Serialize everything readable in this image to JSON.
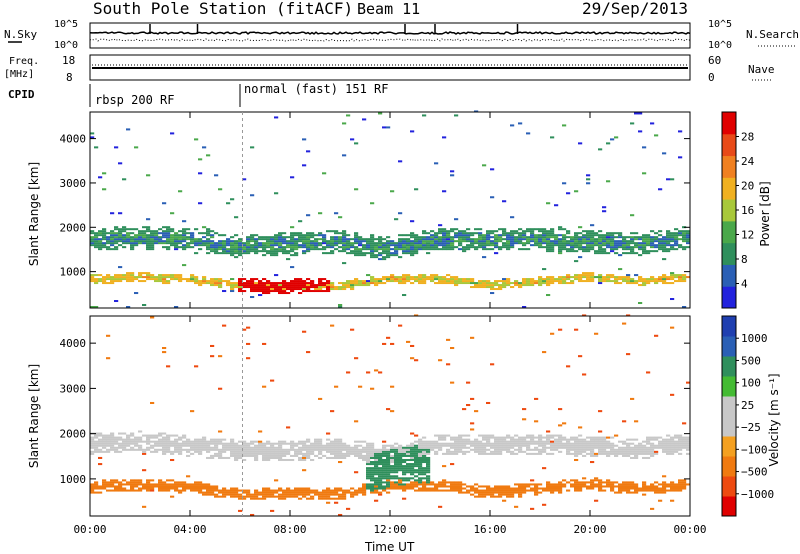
{
  "header": {
    "station": "South Pole Station (fitACF)",
    "beam": "Beam 11",
    "date": "29/Sep/2013"
  },
  "status_panels": {
    "nsky_label": "N.Sky",
    "nsearch_label": "N.Search",
    "nsky_ticks": [
      "10^5",
      "10^0"
    ],
    "nsearch_ticks": [
      "10^5",
      "10^0"
    ],
    "freq_label": "Freq.",
    "freq_unit": "[MHz]",
    "freq_ticks": [
      "18",
      "8"
    ],
    "nave_label": "Nave",
    "nave_ticks": [
      "60",
      "0"
    ],
    "cpid_label": "CPID",
    "cpid_segments": [
      {
        "label": "rbsp 200 RF",
        "start_hour": 0
      },
      {
        "label": "normal (fast) 151 RF",
        "start_hour": 6.1
      }
    ]
  },
  "colors": {
    "power": [
      "#2222dd",
      "#2a5fb5",
      "#2f8f5c",
      "#4aa84a",
      "#a8c83a",
      "#f0b020",
      "#f08020",
      "#e84a18",
      "#e00000"
    ],
    "velocity": [
      "#e00000",
      "#ee4a10",
      "#f07a10",
      "#f4a020",
      "#c8c8c8",
      "#c8c8c8",
      "#44bb33",
      "#2f8f5c",
      "#2a5fb5",
      "#1f3fb0"
    ]
  },
  "chart_data": [
    {
      "type": "heatmap",
      "panel": "power",
      "xlabel": "",
      "ylabel": "Slant Range [km]",
      "y_ticks": [
        "1000",
        "2000",
        "3000",
        "4000"
      ],
      "ylim": [
        180,
        4600
      ],
      "xlim": [
        0,
        24
      ],
      "colorbar": {
        "label": "Power [dB]",
        "ticks": [
          "4",
          "8",
          "12",
          "16",
          "20",
          "24",
          "28"
        ],
        "range": [
          0,
          30
        ]
      },
      "bands": [
        {
          "name": "near",
          "points": [
            [
              0,
              800
            ],
            [
              2,
              850
            ],
            [
              4,
              800
            ],
            [
              6,
              650
            ],
            [
              8,
              650
            ],
            [
              10,
              650
            ],
            [
              12,
              820
            ],
            [
              14,
              820
            ],
            [
              16,
              680
            ],
            [
              18,
              750
            ],
            [
              20,
              870
            ],
            [
              22,
              760
            ],
            [
              24,
              850
            ]
          ],
          "half_width": 110,
          "value": 17
        },
        {
          "name": "far",
          "points": [
            [
              0,
              1700
            ],
            [
              2,
              1750
            ],
            [
              4,
              1700
            ],
            [
              6,
              1550
            ],
            [
              8,
              1600
            ],
            [
              10,
              1650
            ],
            [
              12,
              1500
            ],
            [
              14,
              1700
            ],
            [
              16,
              1700
            ],
            [
              18,
              1700
            ],
            [
              20,
              1650
            ],
            [
              22,
              1600
            ],
            [
              24,
              1750
            ]
          ],
          "half_width": 260,
          "value": 8
        },
        {
          "name": "strong",
          "points": [
            [
              5.9,
              700
            ],
            [
              7,
              650
            ],
            [
              8,
              650
            ],
            [
              9,
              660
            ],
            [
              9.6,
              700
            ]
          ],
          "half_width": 160,
          "value": 28
        }
      ]
    },
    {
      "type": "heatmap",
      "panel": "velocity",
      "xlabel": "Time UT",
      "ylabel": "Slant Range [km]",
      "x_ticks": [
        "00:00",
        "04:00",
        "08:00",
        "12:00",
        "16:00",
        "20:00",
        "00:00"
      ],
      "y_ticks": [
        "1000",
        "2000",
        "3000",
        "4000"
      ],
      "ylim": [
        180,
        4600
      ],
      "xlim": [
        0,
        24
      ],
      "colorbar": {
        "label": "Velocity [m s⁻¹]",
        "ticks": [
          "1000",
          "500",
          "100",
          "25",
          "−25",
          "−100",
          "−500",
          "−1000"
        ],
        "range": [
          -1000,
          1000
        ]
      },
      "bands": [
        {
          "name": "near",
          "points": [
            [
              0,
              800
            ],
            [
              2,
              850
            ],
            [
              4,
              800
            ],
            [
              6,
              650
            ],
            [
              8,
              650
            ],
            [
              10,
              650
            ],
            [
              12,
              820
            ],
            [
              14,
              820
            ],
            [
              16,
              680
            ],
            [
              18,
              750
            ],
            [
              20,
              870
            ],
            [
              22,
              760
            ],
            [
              24,
              850
            ]
          ],
          "half_width": 140,
          "value": -200
        },
        {
          "name": "far",
          "points": [
            [
              0,
              1750
            ],
            [
              2,
              1800
            ],
            [
              4,
              1700
            ],
            [
              6,
              1600
            ],
            [
              8,
              1600
            ],
            [
              10,
              1650
            ],
            [
              12,
              1500
            ],
            [
              14,
              1750
            ],
            [
              16,
              1750
            ],
            [
              18,
              1750
            ],
            [
              20,
              1700
            ],
            [
              22,
              1650
            ],
            [
              24,
              1750
            ]
          ],
          "half_width": 230,
          "value": 0
        },
        {
          "name": "positive",
          "points": [
            [
              11,
              1100
            ],
            [
              12,
              1200
            ],
            [
              13,
              1300
            ],
            [
              13.6,
              1200
            ]
          ],
          "half_width": 420,
          "value": 300
        }
      ]
    }
  ]
}
